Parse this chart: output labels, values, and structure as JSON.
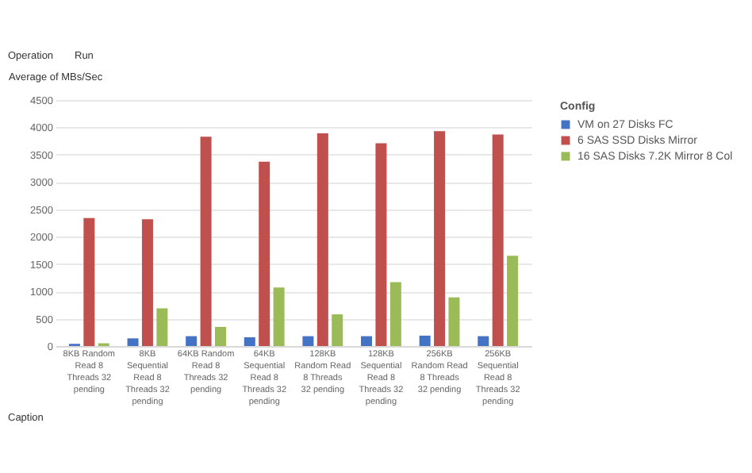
{
  "chart_data": {
    "type": "bar",
    "ylabel": "Average of MBs/Sec",
    "legend_title": "Config",
    "legend": "right",
    "grid": "y",
    "annotations": [
      "Operation",
      "Run",
      "Caption"
    ],
    "categories": [
      "8KB Random Read 8 Threads 32 pending",
      "8KB Sequential Read 8 Threads 32 pending",
      "64KB Random Read 8 Threads 32 pending",
      "64KB Sequential Read 8 Threads 32 pending",
      "128KB Random Read 8 Threads 32 pending",
      "128KB Sequential Read 8 Threads 32 pending",
      "256KB Random Read 8 Threads 32 pending",
      "256KB Sequential Read 8 Threads 32 pending"
    ],
    "ylim": [
      0,
      4500
    ],
    "yticks": [
      0,
      500,
      1000,
      1500,
      2000,
      2500,
      3000,
      3500,
      4000,
      4500
    ],
    "series": [
      {
        "name": "VM on 27 Disks FC",
        "color": "#4472c4",
        "values": [
          40,
          140,
          180,
          160,
          180,
          180,
          190,
          180
        ]
      },
      {
        "name": "6 SAS SSD Disks Mirror",
        "color": "#c0504d",
        "values": [
          2340,
          2320,
          3830,
          3370,
          3890,
          3710,
          3930,
          3870
        ]
      },
      {
        "name": "16 SAS Disks 7.2K Mirror 8 Col",
        "color": "#9bbb59",
        "values": [
          50,
          690,
          350,
          1070,
          580,
          1170,
          890,
          1650
        ]
      }
    ]
  }
}
